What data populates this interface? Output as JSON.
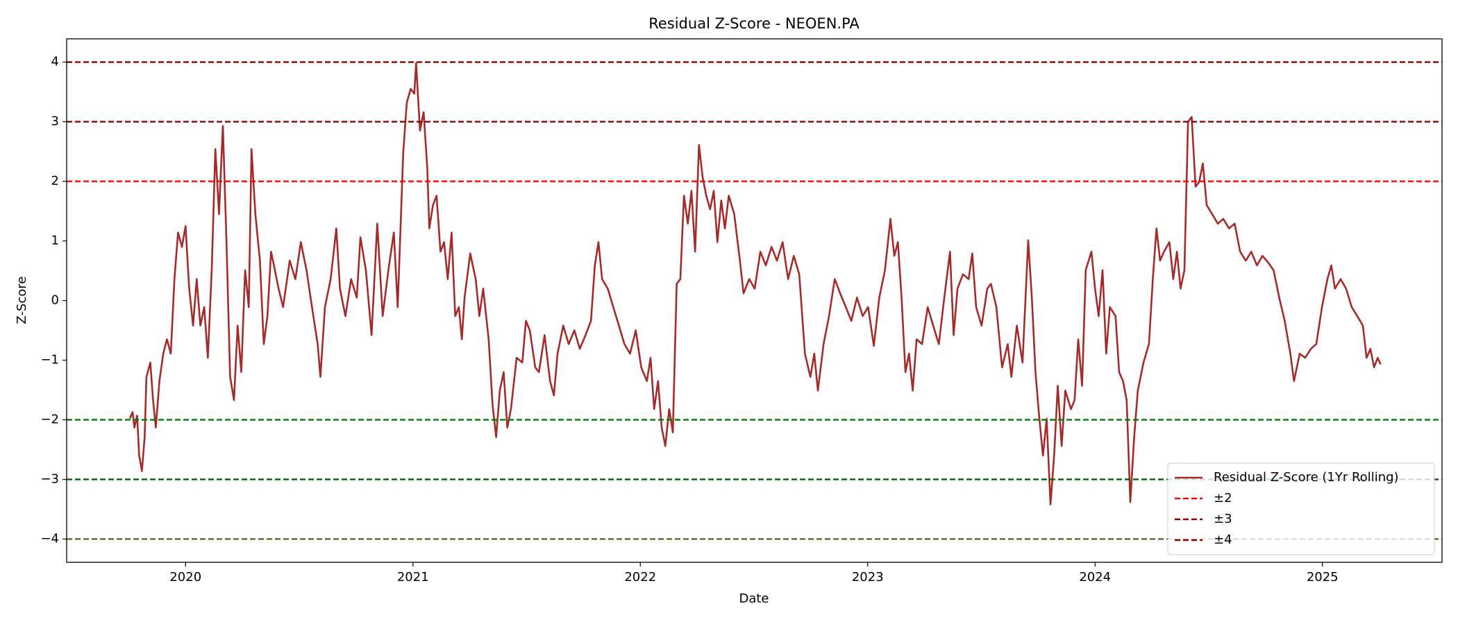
{
  "chart_data": {
    "type": "line",
    "title": "Residual Z-Score - NEOEN.PA",
    "x_label": "Date",
    "y_label": "Z-Score",
    "xlim": [
      2019.477,
      2025.526
    ],
    "xticks": [
      2020,
      2021,
      2022,
      2023,
      2024,
      2025
    ],
    "ylim": [
      -4.39,
      4.39
    ],
    "yticks": [
      {
        "value": -4,
        "label": "−4"
      },
      {
        "value": -3,
        "label": "−3"
      },
      {
        "value": -2,
        "label": "−2"
      },
      {
        "value": -1,
        "label": "−1"
      },
      0,
      1,
      2,
      3,
      4
    ],
    "legend": "lower right",
    "series": [
      {
        "name": "Residual Z-Score (1Yr Rolling)",
        "color": "#a52a2a",
        "x": [
          2019.755,
          2019.767,
          2019.775,
          2019.787,
          2019.796,
          2019.808,
          2019.82,
          2019.828,
          2019.845,
          2019.857,
          2019.869,
          2019.885,
          2019.902,
          2019.918,
          2019.935,
          2019.951,
          2019.967,
          2019.984,
          2020.0,
          2020.016,
          2020.033,
          2020.049,
          2020.065,
          2020.082,
          2020.098,
          2020.115,
          2020.131,
          2020.147,
          2020.164,
          2020.18,
          2020.196,
          2020.213,
          2020.229,
          2020.245,
          2020.262,
          2020.278,
          2020.29,
          2020.307,
          2020.327,
          2020.344,
          2020.36,
          2020.376,
          2020.393,
          2020.409,
          2020.429,
          2020.458,
          2020.483,
          2020.507,
          2020.532,
          2020.556,
          2020.581,
          2020.593,
          2020.613,
          2020.638,
          2020.663,
          2020.679,
          2020.703,
          2020.728,
          2020.753,
          2020.769,
          2020.793,
          2020.818,
          2020.843,
          2020.867,
          2020.892,
          2020.916,
          2020.933,
          2020.957,
          2020.973,
          2020.99,
          2021.006,
          2021.014,
          2021.031,
          2021.047,
          2021.063,
          2021.072,
          2021.088,
          2021.104,
          2021.121,
          2021.137,
          2021.153,
          2021.17,
          2021.186,
          2021.202,
          2021.215,
          2021.227,
          2021.252,
          2021.276,
          2021.292,
          2021.309,
          2021.333,
          2021.35,
          2021.366,
          2021.382,
          2021.399,
          2021.415,
          2021.431,
          2021.456,
          2021.481,
          2021.497,
          2021.514,
          2021.538,
          2021.554,
          2021.579,
          2021.603,
          2021.62,
          2021.636,
          2021.661,
          2021.685,
          2021.71,
          2021.734,
          2021.759,
          2021.783,
          2021.8,
          2021.816,
          2021.832,
          2021.857,
          2021.881,
          2021.906,
          2021.93,
          2021.955,
          2021.98,
          2022.004,
          2022.029,
          2022.045,
          2022.061,
          2022.078,
          2022.094,
          2022.11,
          2022.127,
          2022.143,
          2022.16,
          2022.176,
          2022.192,
          2022.209,
          2022.225,
          2022.241,
          2022.258,
          2022.274,
          2022.29,
          2022.307,
          2022.323,
          2022.339,
          2022.356,
          2022.372,
          2022.389,
          2022.413,
          2022.438,
          2022.454,
          2022.479,
          2022.503,
          2022.528,
          2022.552,
          2022.577,
          2022.601,
          2022.626,
          2022.65,
          2022.675,
          2022.699,
          2022.724,
          2022.748,
          2022.765,
          2022.781,
          2022.806,
          2022.83,
          2022.855,
          2022.879,
          2022.904,
          2022.928,
          2022.953,
          2022.978,
          2023.002,
          2023.027,
          2023.051,
          2023.076,
          2023.1,
          2023.117,
          2023.133,
          2023.149,
          2023.166,
          2023.182,
          2023.198,
          2023.215,
          2023.239,
          2023.264,
          2023.288,
          2023.313,
          2023.337,
          2023.362,
          2023.378,
          2023.395,
          2023.419,
          2023.444,
          2023.46,
          2023.477,
          2023.501,
          2023.526,
          2023.542,
          2023.566,
          2023.591,
          2023.616,
          2023.632,
          2023.656,
          2023.681,
          2023.706,
          2023.722,
          2023.738,
          2023.755,
          2023.771,
          2023.787,
          2023.804,
          2023.82,
          2023.836,
          2023.853,
          2023.869,
          2023.894,
          2023.91,
          2023.926,
          2023.943,
          2023.959,
          2023.984,
          2024.0,
          2024.016,
          2024.033,
          2024.049,
          2024.065,
          2024.09,
          2024.106,
          2024.123,
          2024.139,
          2024.155,
          2024.172,
          2024.188,
          2024.213,
          2024.237,
          2024.254,
          2024.27,
          2024.286,
          2024.303,
          2024.327,
          2024.344,
          2024.36,
          2024.376,
          2024.393,
          2024.409,
          2024.425,
          2024.442,
          2024.458,
          2024.474,
          2024.491,
          2024.515,
          2024.54,
          2024.564,
          2024.589,
          2024.614,
          2024.638,
          2024.663,
          2024.687,
          2024.712,
          2024.736,
          2024.761,
          2024.785,
          2024.81,
          2024.834,
          2024.859,
          2024.875,
          2024.9,
          2024.924,
          2024.949,
          2024.973,
          2024.998,
          2025.022,
          2025.039,
          2025.055,
          2025.08,
          2025.104,
          2025.129,
          2025.153,
          2025.178,
          2025.194,
          2025.211,
          2025.227,
          2025.243,
          2025.256
        ],
        "values": [
          -1.98,
          -1.87,
          -2.13,
          -1.93,
          -2.6,
          -2.86,
          -2.29,
          -1.28,
          -1.04,
          -1.67,
          -2.13,
          -1.35,
          -0.89,
          -0.65,
          -0.89,
          0.36,
          1.14,
          0.9,
          1.25,
          0.2,
          -0.42,
          0.36,
          -0.42,
          -0.11,
          -0.96,
          0.51,
          2.54,
          1.45,
          2.93,
          0.98,
          -1.28,
          -1.67,
          -0.42,
          -1.2,
          0.51,
          -0.11,
          2.54,
          1.45,
          0.67,
          -0.73,
          -0.26,
          0.82,
          0.51,
          0.2,
          -0.11,
          0.67,
          0.36,
          0.98,
          0.51,
          -0.11,
          -0.73,
          -1.28,
          -0.11,
          0.36,
          1.21,
          0.2,
          -0.26,
          0.36,
          0.05,
          1.06,
          0.51,
          -0.58,
          1.29,
          -0.26,
          0.51,
          1.14,
          -0.11,
          2.46,
          3.32,
          3.55,
          3.47,
          3.98,
          2.85,
          3.16,
          2.23,
          1.21,
          1.6,
          1.76,
          0.82,
          0.98,
          0.36,
          1.14,
          -0.26,
          -0.11,
          -0.65,
          0.05,
          0.79,
          0.36,
          -0.26,
          0.2,
          -0.65,
          -1.74,
          -2.29,
          -1.51,
          -1.2,
          -2.13,
          -1.82,
          -0.96,
          -1.04,
          -0.34,
          -0.5,
          -1.12,
          -1.2,
          -0.58,
          -1.35,
          -1.59,
          -0.89,
          -0.42,
          -0.73,
          -0.5,
          -0.81,
          -0.58,
          -0.34,
          0.59,
          0.98,
          0.36,
          0.2,
          -0.11,
          -0.42,
          -0.73,
          -0.89,
          -0.5,
          -1.12,
          -1.35,
          -0.96,
          -1.82,
          -1.35,
          -2.13,
          -2.44,
          -1.82,
          -2.21,
          0.28,
          0.36,
          1.76,
          1.29,
          1.84,
          0.82,
          2.61,
          2.07,
          1.76,
          1.53,
          1.84,
          0.98,
          1.68,
          1.21,
          1.76,
          1.45,
          0.67,
          0.12,
          0.36,
          0.2,
          0.82,
          0.59,
          0.9,
          0.67,
          0.98,
          0.36,
          0.75,
          0.44,
          -0.89,
          -1.28,
          -0.89,
          -1.51,
          -0.73,
          -0.26,
          0.36,
          0.12,
          -0.11,
          -0.34,
          0.05,
          -0.26,
          -0.11,
          -0.76,
          0.05,
          0.51,
          1.37,
          0.75,
          0.98,
          0.05,
          -1.2,
          -0.89,
          -1.51,
          -0.65,
          -0.73,
          -0.11,
          -0.42,
          -0.73,
          0.05,
          0.82,
          -0.58,
          0.2,
          0.44,
          0.36,
          0.79,
          -0.11,
          -0.42,
          0.2,
          0.28,
          -0.11,
          -1.12,
          -0.73,
          -1.28,
          -0.42,
          -1.04,
          1.01,
          0.05,
          -1.2,
          -1.98,
          -2.6,
          -1.98,
          -3.42,
          -2.6,
          -1.43,
          -2.44,
          -1.51,
          -1.82,
          -1.67,
          -0.65,
          -1.43,
          0.51,
          0.82,
          0.2,
          -0.26,
          0.51,
          -0.89,
          -0.11,
          -0.26,
          -1.2,
          -1.35,
          -1.67,
          -3.38,
          -2.29,
          -1.51,
          -1.04,
          -0.73,
          0.36,
          1.21,
          0.67,
          0.82,
          0.98,
          0.36,
          0.82,
          0.2,
          0.51,
          3.0,
          3.08,
          1.91,
          1.99,
          2.3,
          1.6,
          1.45,
          1.29,
          1.37,
          1.21,
          1.29,
          0.82,
          0.67,
          0.82,
          0.59,
          0.75,
          0.64,
          0.51,
          0.05,
          -0.34,
          -0.89,
          -1.35,
          -0.89,
          -0.96,
          -0.81,
          -0.73,
          -0.11,
          0.36,
          0.59,
          0.2,
          0.36,
          0.2,
          -0.11,
          -0.26,
          -0.42,
          -0.96,
          -0.81,
          -1.12,
          -0.96,
          -1.07
        ]
      }
    ],
    "reference_lines": [
      {
        "name": "±2",
        "values": [
          2,
          -2
        ],
        "colors": [
          "#ff0000",
          "#008000"
        ]
      },
      {
        "name": "±3",
        "values": [
          3,
          -3
        ],
        "colors": [
          "#8b0000",
          "#006400"
        ]
      },
      {
        "name": "±4",
        "values": [
          4,
          -4
        ],
        "colors": [
          "#8b0000",
          "#556b2f"
        ]
      }
    ]
  }
}
